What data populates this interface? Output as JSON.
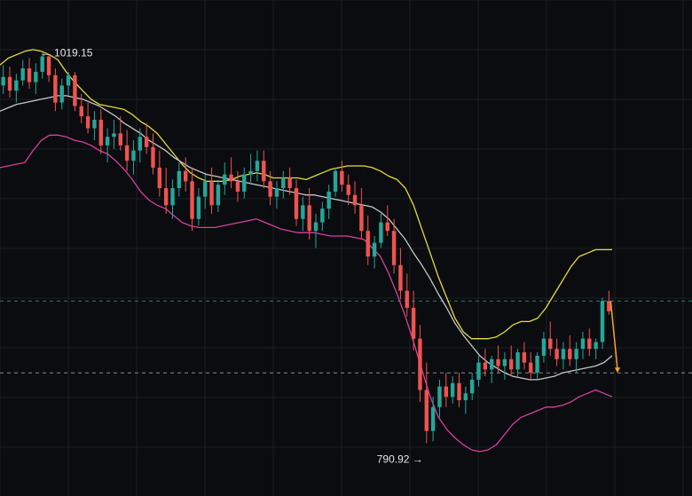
{
  "chart_data": {
    "type": "candlestick",
    "colors": {
      "background": "#0b0c0f",
      "grid": "#1b1e24",
      "up": "#26a69a",
      "down": "#ef5350",
      "bb_upper": "#e6dc3c",
      "bb_middle": "#c8c8c8",
      "bb_lower": "#d6409f",
      "projection": "#f5a623",
      "dashed_level_1": "#2a7f6f",
      "dashed_level_2": "#8a8a8a"
    },
    "grid": true,
    "high_label": "← 1019.15",
    "low_label": "790.92 →",
    "candles": [
      [
        1000,
        1012,
        995,
        1005
      ],
      [
        1005,
        1011,
        993,
        997
      ],
      [
        997,
        1007,
        990,
        1003
      ],
      [
        1003,
        1015,
        1000,
        1010
      ],
      [
        1010,
        1016,
        998,
        1002
      ],
      [
        1002,
        1013,
        995,
        1008
      ],
      [
        1008,
        1019.15,
        1004,
        1017
      ],
      [
        1017,
        1018,
        1002,
        1006
      ],
      [
        1006,
        1010,
        985,
        990
      ],
      [
        990,
        1004,
        986,
        1000
      ],
      [
        1000,
        1008,
        994,
        1006
      ],
      [
        1006,
        1008,
        985,
        988
      ],
      [
        988,
        995,
        978,
        982
      ],
      [
        982,
        990,
        972,
        975
      ],
      [
        975,
        985,
        968,
        980
      ],
      [
        980,
        986,
        960,
        965
      ],
      [
        965,
        975,
        955,
        970
      ],
      [
        970,
        980,
        963,
        972
      ],
      [
        972,
        982,
        962,
        965
      ],
      [
        965,
        974,
        950,
        956
      ],
      [
        956,
        968,
        948,
        962
      ],
      [
        962,
        975,
        955,
        970
      ],
      [
        970,
        978,
        960,
        964
      ],
      [
        964,
        972,
        948,
        952
      ],
      [
        952,
        962,
        935,
        940
      ],
      [
        940,
        952,
        925,
        930
      ],
      [
        930,
        945,
        922,
        940
      ],
      [
        940,
        955,
        935,
        950
      ],
      [
        950,
        958,
        938,
        944
      ],
      [
        944,
        952,
        915,
        922
      ],
      [
        922,
        940,
        918,
        935
      ],
      [
        935,
        948,
        928,
        944
      ],
      [
        944,
        952,
        925,
        930
      ],
      [
        930,
        945,
        926,
        942
      ],
      [
        942,
        955,
        936,
        948
      ],
      [
        948,
        958,
        940,
        944
      ],
      [
        944,
        950,
        932,
        938
      ],
      [
        938,
        952,
        934,
        948
      ],
      [
        948,
        960,
        942,
        950
      ],
      [
        950,
        962,
        944,
        956
      ],
      [
        956,
        962,
        940,
        944
      ],
      [
        944,
        950,
        930,
        935
      ],
      [
        935,
        944,
        928,
        940
      ],
      [
        940,
        950,
        934,
        946
      ],
      [
        946,
        952,
        936,
        940
      ],
      [
        940,
        945,
        918,
        922
      ],
      [
        922,
        935,
        915,
        930
      ],
      [
        930,
        940,
        910,
        915
      ],
      [
        915,
        925,
        905,
        920
      ],
      [
        920,
        932,
        915,
        928
      ],
      [
        928,
        942,
        922,
        938
      ],
      [
        938,
        952,
        935,
        950
      ],
      [
        950,
        956,
        938,
        942
      ],
      [
        942,
        948,
        930,
        936
      ],
      [
        936,
        944,
        925,
        930
      ],
      [
        930,
        940,
        910,
        915
      ],
      [
        915,
        924,
        895,
        900
      ],
      [
        900,
        912,
        893,
        908
      ],
      [
        908,
        925,
        905,
        920
      ],
      [
        920,
        930,
        912,
        915
      ],
      [
        915,
        922,
        890,
        895
      ],
      [
        895,
        905,
        875,
        880
      ],
      [
        880,
        890,
        865,
        870
      ],
      [
        870,
        880,
        845,
        852
      ],
      [
        852,
        860,
        815,
        822
      ],
      [
        822,
        838,
        790.92,
        798
      ],
      [
        798,
        818,
        792,
        812
      ],
      [
        812,
        828,
        806,
        824
      ],
      [
        824,
        832,
        812,
        818
      ],
      [
        818,
        830,
        814,
        826
      ],
      [
        826,
        832,
        812,
        816
      ],
      [
        816,
        824,
        808,
        820
      ],
      [
        820,
        832,
        816,
        828
      ],
      [
        828,
        842,
        824,
        838
      ],
      [
        838,
        846,
        830,
        834
      ],
      [
        834,
        842,
        826,
        840
      ],
      [
        840,
        848,
        832,
        836
      ],
      [
        836,
        844,
        828,
        840
      ],
      [
        840,
        848,
        830,
        834
      ],
      [
        834,
        846,
        830,
        844
      ],
      [
        844,
        850,
        834,
        838
      ],
      [
        838,
        844,
        828,
        832
      ],
      [
        832,
        844,
        828,
        842
      ],
      [
        842,
        856,
        838,
        852
      ],
      [
        852,
        862,
        842,
        846
      ],
      [
        846,
        852,
        836,
        840
      ],
      [
        840,
        850,
        834,
        846
      ],
      [
        846,
        854,
        836,
        840
      ],
      [
        840,
        850,
        832,
        846
      ],
      [
        846,
        856,
        840,
        852
      ],
      [
        852,
        858,
        842,
        846
      ],
      [
        846,
        852,
        840,
        850
      ],
      [
        850,
        876,
        846,
        874
      ],
      [
        874,
        880,
        866,
        868
      ]
    ],
    "bollinger": {
      "upper": [
        1012,
        1016,
        1018,
        1020,
        1021,
        1020,
        1018,
        1015,
        1008,
        1002,
        997,
        992,
        989,
        988,
        987,
        986,
        983,
        979,
        976,
        972,
        966,
        960,
        954,
        949,
        946,
        944,
        944,
        944,
        945,
        947,
        948,
        949,
        948,
        946,
        946,
        946,
        946,
        945,
        947,
        949,
        951,
        952,
        953,
        953,
        953,
        952,
        950,
        947,
        945,
        940,
        930,
        916,
        902,
        888,
        876,
        864,
        856,
        852,
        852,
        852,
        853,
        856,
        860,
        862,
        862,
        864,
        870,
        878,
        886,
        894,
        900,
        902,
        904,
        904,
        904
      ],
      "middle": [
        985,
        987,
        989,
        990,
        991,
        992,
        993,
        994,
        994,
        993,
        992,
        990,
        988,
        985,
        982,
        978,
        975,
        972,
        968,
        965,
        962,
        958,
        955,
        952,
        950,
        948,
        947,
        946,
        945,
        944,
        943,
        942,
        941,
        940,
        939,
        938,
        937,
        936,
        936,
        935,
        934,
        933,
        932,
        931,
        930,
        929,
        926,
        922,
        916,
        910,
        902,
        895,
        887,
        878,
        870,
        861,
        854,
        848,
        842,
        838,
        835,
        832,
        830,
        829,
        828,
        828,
        829,
        830,
        832,
        833,
        834,
        835,
        836,
        838,
        842
      ],
      "lower": [
        952,
        953,
        954,
        955,
        962,
        968,
        971,
        971,
        970,
        968,
        967,
        965,
        962,
        960,
        956,
        951,
        945,
        938,
        933,
        930,
        928,
        924,
        920,
        918,
        917,
        917,
        917,
        918,
        919,
        920,
        921,
        922,
        920,
        918,
        916,
        915,
        914,
        914,
        914,
        913,
        912,
        912,
        912,
        911,
        910,
        905,
        900,
        890,
        878,
        865,
        850,
        834,
        818,
        806,
        799,
        794,
        790,
        787,
        786,
        787,
        790,
        796,
        802,
        806,
        808,
        810,
        812,
        812,
        813,
        815,
        818,
        820,
        822,
        820,
        818
      ]
    },
    "projection": {
      "from": 874,
      "to": 832
    },
    "dashed_levels": [
      874,
      832
    ]
  }
}
